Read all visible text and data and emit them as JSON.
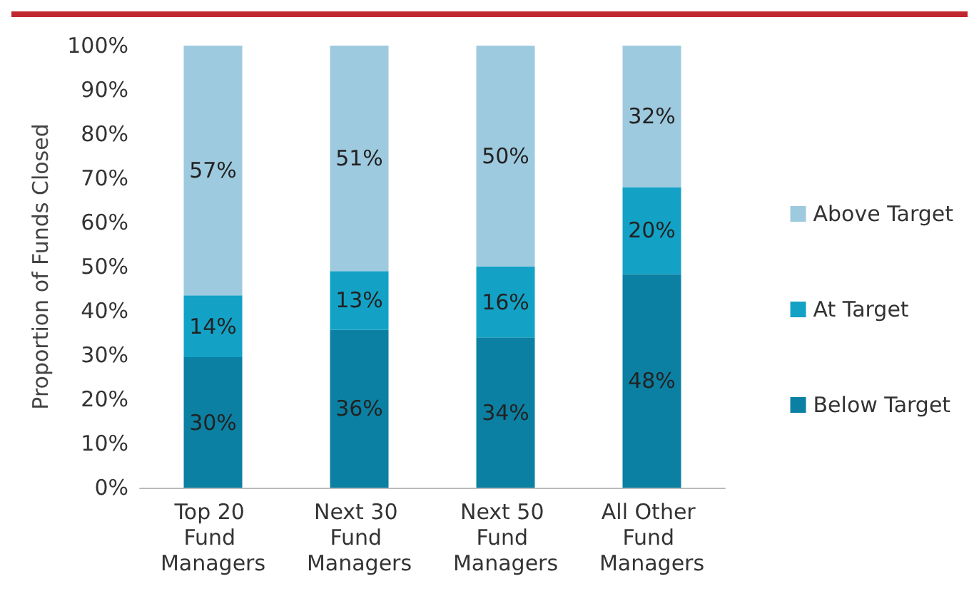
{
  "chart_data": {
    "type": "bar",
    "stacked": true,
    "ylabel": "Proportion of Funds Closed",
    "categories": [
      "Top 20 Fund Managers",
      "Next 30 Fund Managers",
      "Next 50 Fund Managers",
      "All Other Fund Managers"
    ],
    "series": [
      {
        "name": "Below Target",
        "color": "#0b80a2",
        "values": [
          29.5,
          35.7,
          34,
          48.3
        ],
        "value_labels": [
          "30%",
          "36%",
          "34%",
          "48%"
        ]
      },
      {
        "name": "At Target",
        "color": "#13a2c6",
        "values": [
          14,
          13.3,
          16,
          19.7
        ],
        "value_labels": [
          "14%",
          "13%",
          "16%",
          "20%"
        ]
      },
      {
        "name": "Above Target",
        "color": "#9ecadf",
        "values": [
          56.5,
          51,
          50,
          32
        ],
        "value_labels": [
          "57%",
          "51%",
          "50%",
          "32%"
        ]
      }
    ],
    "ylim": [
      0,
      100
    ],
    "yticks": [
      {
        "value": 0,
        "label": "0%"
      },
      {
        "value": 10,
        "label": "10%"
      },
      {
        "value": 20,
        "label": "20%"
      },
      {
        "value": 30,
        "label": "30%"
      },
      {
        "value": 40,
        "label": "40%"
      },
      {
        "value": 50,
        "label": "50%"
      },
      {
        "value": 60,
        "label": "60%"
      },
      {
        "value": 70,
        "label": "70%"
      },
      {
        "value": 80,
        "label": "80%"
      },
      {
        "value": 90,
        "label": "90%"
      },
      {
        "value": 100,
        "label": "100%"
      }
    ],
    "grid": false,
    "legend": "right"
  }
}
